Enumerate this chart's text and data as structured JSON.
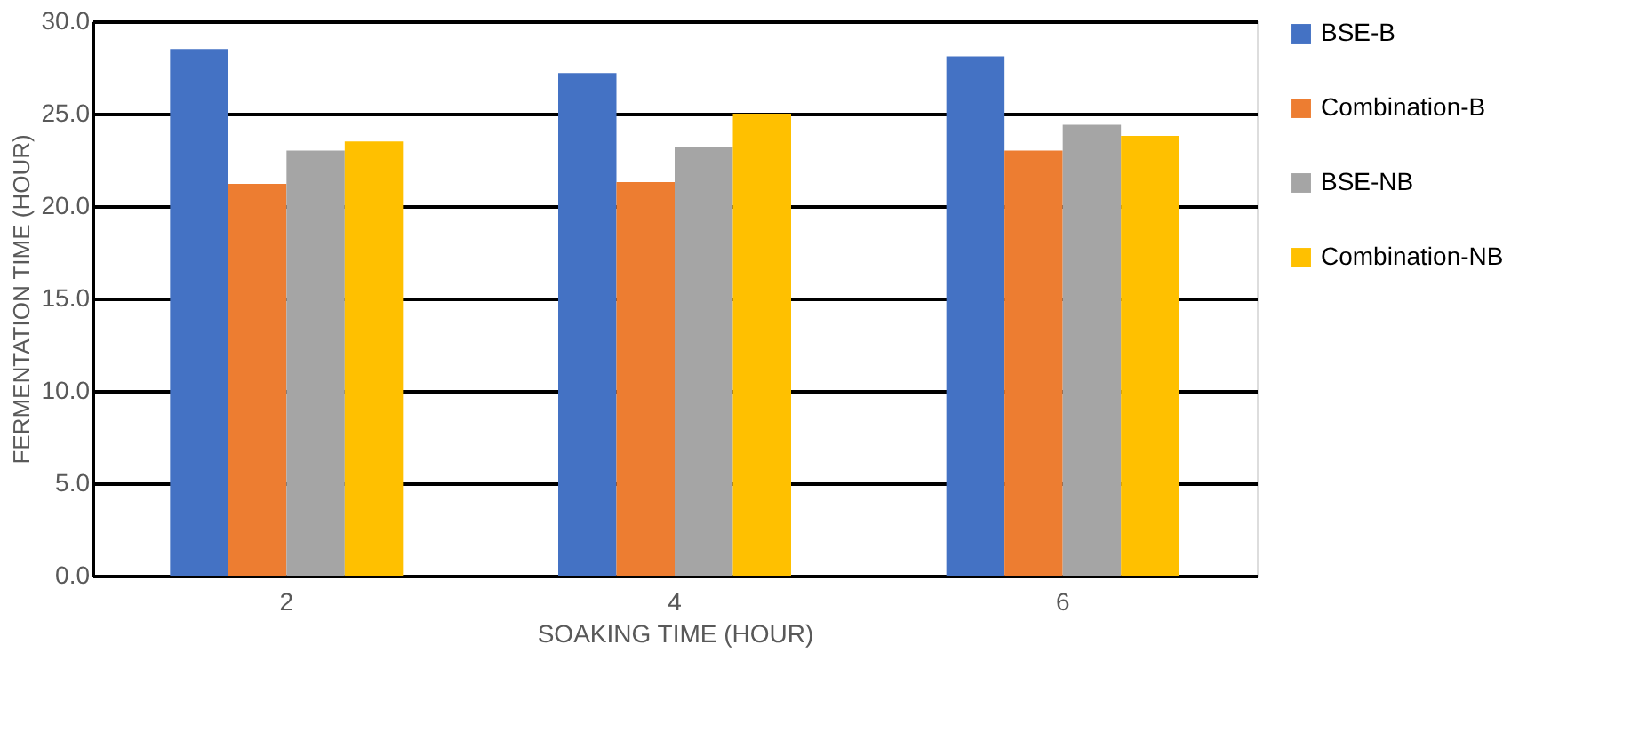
{
  "chart_data": {
    "type": "bar",
    "xlabel": "SOAKING TIME (HOUR)",
    "ylabel": "FERMENTATION TIME (HOUR)",
    "categories": [
      "2",
      "4",
      "6"
    ],
    "series": [
      {
        "name": "BSE-B",
        "color": "#4472c4",
        "values": [
          28.5,
          27.2,
          28.1
        ]
      },
      {
        "name": "Combination-B",
        "color": "#ed7d31",
        "values": [
          21.2,
          21.3,
          23.0
        ]
      },
      {
        "name": "BSE-NB",
        "color": "#a5a5a5",
        "values": [
          23.0,
          23.2,
          24.4
        ]
      },
      {
        "name": "Combination-NB",
        "color": "#ffc000",
        "values": [
          23.5,
          25.0,
          23.8
        ]
      }
    ],
    "ylim": [
      0,
      30
    ],
    "yticks": [
      {
        "value": 0,
        "label": "0.0"
      },
      {
        "value": 5,
        "label": "5.0"
      },
      {
        "value": 10,
        "label": "10.0"
      },
      {
        "value": 15,
        "label": "15.0"
      },
      {
        "value": 20,
        "label": "20.0"
      },
      {
        "value": 25,
        "label": "25.0"
      },
      {
        "value": 30,
        "label": "30.0"
      }
    ],
    "grid": "y",
    "legend": "right"
  }
}
